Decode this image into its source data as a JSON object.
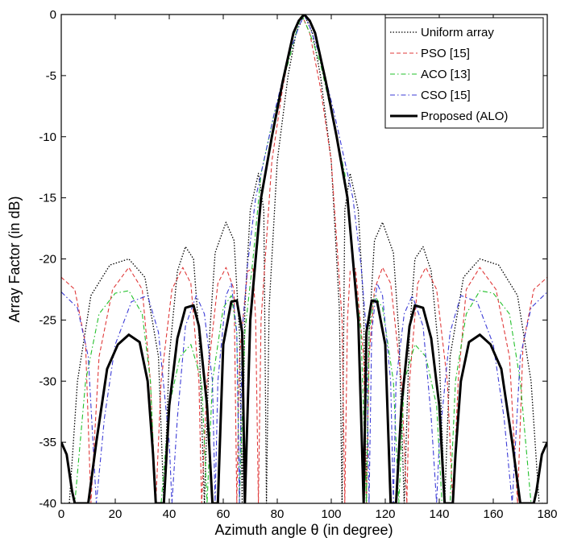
{
  "chart_data": {
    "type": "line",
    "title": "",
    "xlabel": "Azimuth angle θ (in degree)",
    "ylabel": "Array Factor (in dB)",
    "xlim": [
      0,
      180
    ],
    "ylim": [
      -40,
      0
    ],
    "xticks": [
      0,
      20,
      40,
      60,
      80,
      100,
      120,
      140,
      160,
      180
    ],
    "yticks": [
      0,
      -5,
      -10,
      -15,
      -20,
      -25,
      -30,
      -35,
      -40
    ],
    "grid": false,
    "legend_position": "top-right",
    "series": [
      {
        "name": "Uniform array",
        "color": "#000000",
        "style": "dotted",
        "points": [
          [
            0,
            -40
          ],
          [
            3,
            -40
          ],
          [
            6,
            -30
          ],
          [
            11,
            -23
          ],
          [
            18,
            -20.5
          ],
          [
            25,
            -20
          ],
          [
            31,
            -21.5
          ],
          [
            36,
            -28
          ],
          [
            38,
            -40
          ],
          [
            40,
            -28
          ],
          [
            43,
            -21
          ],
          [
            46,
            -19
          ],
          [
            49,
            -20
          ],
          [
            51,
            -26
          ],
          [
            53,
            -40
          ],
          [
            55,
            -26
          ],
          [
            57,
            -19.5
          ],
          [
            61,
            -17
          ],
          [
            64,
            -18.5
          ],
          [
            66,
            -26
          ],
          [
            67,
            -40
          ],
          [
            68,
            -24
          ],
          [
            70,
            -16
          ],
          [
            73,
            -13
          ],
          [
            75,
            -16
          ],
          [
            76,
            -40
          ],
          [
            77,
            -24
          ],
          [
            80,
            -12
          ],
          [
            84,
            -5
          ],
          [
            87,
            -1.5
          ],
          [
            90,
            0
          ],
          [
            93,
            -1.5
          ],
          [
            96,
            -5
          ],
          [
            100,
            -12
          ],
          [
            103,
            -24
          ],
          [
            104,
            -40
          ],
          [
            105,
            -16
          ],
          [
            107,
            -13
          ],
          [
            110,
            -16
          ],
          [
            112,
            -24
          ],
          [
            113,
            -40
          ],
          [
            114,
            -26
          ],
          [
            116,
            -18.5
          ],
          [
            119,
            -17
          ],
          [
            123,
            -19.5
          ],
          [
            125,
            -26
          ],
          [
            127,
            -40
          ],
          [
            129,
            -26
          ],
          [
            131,
            -20
          ],
          [
            134,
            -19
          ],
          [
            137,
            -21
          ],
          [
            140,
            -28
          ],
          [
            142,
            -40
          ],
          [
            144,
            -28
          ],
          [
            149,
            -21.5
          ],
          [
            155,
            -20
          ],
          [
            162,
            -20.5
          ],
          [
            169,
            -23
          ],
          [
            174,
            -30
          ],
          [
            177,
            -40
          ],
          [
            180,
            -40
          ]
        ]
      },
      {
        "name": "PSO [15]",
        "color": "#e03a3a",
        "style": "dashed",
        "points": [
          [
            0,
            -21.5
          ],
          [
            5,
            -22.5
          ],
          [
            9,
            -27
          ],
          [
            11,
            -40
          ],
          [
            14,
            -28
          ],
          [
            19,
            -22.5
          ],
          [
            25,
            -20.7
          ],
          [
            30,
            -22.5
          ],
          [
            33,
            -30
          ],
          [
            35,
            -40
          ],
          [
            37,
            -30
          ],
          [
            41,
            -22.5
          ],
          [
            45,
            -20.7
          ],
          [
            48,
            -22
          ],
          [
            51,
            -30
          ],
          [
            52,
            -40
          ],
          [
            54,
            -30
          ],
          [
            58,
            -22
          ],
          [
            61,
            -20.7
          ],
          [
            64,
            -22.5
          ],
          [
            65,
            -40
          ],
          [
            66,
            -28
          ],
          [
            69,
            -21
          ],
          [
            71,
            -20.8
          ],
          [
            72,
            -25
          ],
          [
            73,
            -40
          ],
          [
            74,
            -25
          ],
          [
            78,
            -12
          ],
          [
            82,
            -6
          ],
          [
            86,
            -1.5
          ],
          [
            89,
            0
          ],
          [
            92,
            -1.5
          ],
          [
            96,
            -6
          ],
          [
            100,
            -12
          ],
          [
            104,
            -25
          ],
          [
            105,
            -40
          ],
          [
            106,
            -25
          ],
          [
            107,
            -21
          ],
          [
            109,
            -20.8
          ],
          [
            112,
            -28
          ],
          [
            113,
            -40
          ],
          [
            114,
            -28
          ],
          [
            116,
            -22.5
          ],
          [
            119,
            -20.7
          ],
          [
            122,
            -22
          ],
          [
            126,
            -30
          ],
          [
            128,
            -40
          ],
          [
            129,
            -30
          ],
          [
            132,
            -22
          ],
          [
            135,
            -20.7
          ],
          [
            139,
            -22.5
          ],
          [
            143,
            -30
          ],
          [
            145,
            -40
          ],
          [
            147,
            -30
          ],
          [
            150,
            -22.5
          ],
          [
            155,
            -20.7
          ],
          [
            161,
            -22.5
          ],
          [
            166,
            -28
          ],
          [
            169,
            -40
          ],
          [
            171,
            -27
          ],
          [
            175,
            -22.5
          ],
          [
            180,
            -21.5
          ]
        ]
      },
      {
        "name": "ACO [13]",
        "color": "#22c02a",
        "style": "dashdot",
        "points": [
          [
            0,
            -40
          ],
          [
            5,
            -40
          ],
          [
            9,
            -30
          ],
          [
            14,
            -24.5
          ],
          [
            20,
            -22.8
          ],
          [
            25,
            -22.6
          ],
          [
            30,
            -24.5
          ],
          [
            33,
            -30
          ],
          [
            35,
            -40
          ],
          [
            37,
            -40
          ],
          [
            40,
            -32
          ],
          [
            44,
            -28
          ],
          [
            48,
            -27
          ],
          [
            52,
            -30
          ],
          [
            54,
            -40
          ],
          [
            56,
            -30
          ],
          [
            60,
            -24
          ],
          [
            63,
            -23
          ],
          [
            65,
            -26
          ],
          [
            66,
            -40
          ],
          [
            68,
            -26
          ],
          [
            71,
            -20
          ],
          [
            74,
            -13
          ],
          [
            79,
            -8
          ],
          [
            84,
            -4
          ],
          [
            87,
            -1.5
          ],
          [
            89,
            0
          ],
          [
            92,
            -1.5
          ],
          [
            96,
            -4
          ],
          [
            100,
            -8
          ],
          [
            105,
            -13
          ],
          [
            108,
            -20
          ],
          [
            111,
            -26
          ],
          [
            113,
            -40
          ],
          [
            114,
            -26
          ],
          [
            116,
            -23
          ],
          [
            119,
            -24
          ],
          [
            123,
            -30
          ],
          [
            125,
            -40
          ],
          [
            127,
            -30
          ],
          [
            131,
            -27
          ],
          [
            135,
            -28
          ],
          [
            139,
            -32
          ],
          [
            141,
            -40
          ],
          [
            144,
            -40
          ],
          [
            146,
            -30
          ],
          [
            150,
            -24.5
          ],
          [
            155,
            -22.6
          ],
          [
            160,
            -22.8
          ],
          [
            166,
            -24.5
          ],
          [
            170,
            -30
          ],
          [
            174,
            -40
          ],
          [
            180,
            -40
          ]
        ]
      },
      {
        "name": "CSO [15]",
        "color": "#3b3bd6",
        "style": "dashdot",
        "points": [
          [
            0,
            -22.7
          ],
          [
            6,
            -24
          ],
          [
            10,
            -28
          ],
          [
            13,
            -40
          ],
          [
            16,
            -33
          ],
          [
            20,
            -27
          ],
          [
            26,
            -23.5
          ],
          [
            32,
            -23
          ],
          [
            36,
            -26
          ],
          [
            40,
            -35
          ],
          [
            41,
            -40
          ],
          [
            43,
            -33
          ],
          [
            46,
            -25.5
          ],
          [
            50,
            -23
          ],
          [
            53,
            -24.5
          ],
          [
            56,
            -30
          ],
          [
            57,
            -40
          ],
          [
            58,
            -30
          ],
          [
            61,
            -23
          ],
          [
            63,
            -22
          ],
          [
            65,
            -26
          ],
          [
            66,
            -40
          ],
          [
            67,
            -26
          ],
          [
            69,
            -20.5
          ],
          [
            72,
            -15
          ],
          [
            75,
            -12
          ],
          [
            79,
            -8
          ],
          [
            84,
            -3.5
          ],
          [
            88,
            -1
          ],
          [
            90,
            0
          ],
          [
            92,
            -1
          ],
          [
            96,
            -3.5
          ],
          [
            101,
            -8
          ],
          [
            105,
            -12
          ],
          [
            108,
            -15
          ],
          [
            111,
            -20.5
          ],
          [
            113,
            -26
          ],
          [
            114,
            -40
          ],
          [
            115,
            -26
          ],
          [
            117,
            -22
          ],
          [
            119,
            -23
          ],
          [
            122,
            -30
          ],
          [
            123,
            -40
          ],
          [
            124,
            -30
          ],
          [
            127,
            -24.5
          ],
          [
            130,
            -23
          ],
          [
            134,
            -25.5
          ],
          [
            137,
            -33
          ],
          [
            139,
            -40
          ],
          [
            140,
            -35
          ],
          [
            144,
            -26
          ],
          [
            148,
            -23
          ],
          [
            154,
            -23.5
          ],
          [
            160,
            -27
          ],
          [
            164,
            -33
          ],
          [
            167,
            -40
          ],
          [
            170,
            -28
          ],
          [
            174,
            -24
          ],
          [
            180,
            -22.7
          ]
        ]
      },
      {
        "name": "Proposed (ALO)",
        "color": "#000000",
        "style": "solid-bold",
        "points": [
          [
            0,
            -35
          ],
          [
            2,
            -36
          ],
          [
            4,
            -39
          ],
          [
            5,
            -40
          ],
          [
            10,
            -40
          ],
          [
            13,
            -35
          ],
          [
            17,
            -29
          ],
          [
            21,
            -27
          ],
          [
            25,
            -26.2
          ],
          [
            29,
            -26.8
          ],
          [
            32,
            -30
          ],
          [
            34,
            -36
          ],
          [
            35,
            -40
          ],
          [
            38,
            -40
          ],
          [
            40,
            -32
          ],
          [
            43,
            -26.5
          ],
          [
            46,
            -24
          ],
          [
            49,
            -23.8
          ],
          [
            51,
            -25.5
          ],
          [
            54,
            -32
          ],
          [
            56,
            -40
          ],
          [
            58,
            -40
          ],
          [
            60,
            -27
          ],
          [
            63,
            -23.5
          ],
          [
            65,
            -23.4
          ],
          [
            67,
            -26
          ],
          [
            68,
            -40
          ],
          [
            70,
            -25
          ],
          [
            74,
            -15
          ],
          [
            78,
            -10
          ],
          [
            82,
            -5.5
          ],
          [
            86,
            -1.5
          ],
          [
            88,
            -0.5
          ],
          [
            90,
            0
          ],
          [
            92,
            -0.5
          ],
          [
            94,
            -1.5
          ],
          [
            98,
            -5.5
          ],
          [
            102,
            -10
          ],
          [
            106,
            -15
          ],
          [
            110,
            -25
          ],
          [
            112,
            -40
          ],
          [
            113,
            -26
          ],
          [
            115,
            -23.4
          ],
          [
            117,
            -23.5
          ],
          [
            120,
            -27
          ],
          [
            122,
            -40
          ],
          [
            124,
            -40
          ],
          [
            126,
            -32
          ],
          [
            129,
            -25.5
          ],
          [
            131,
            -23.8
          ],
          [
            134,
            -24
          ],
          [
            137,
            -26.5
          ],
          [
            140,
            -32
          ],
          [
            142,
            -40
          ],
          [
            145,
            -40
          ],
          [
            146,
            -36
          ],
          [
            148,
            -30
          ],
          [
            151,
            -26.8
          ],
          [
            155,
            -26.2
          ],
          [
            159,
            -27
          ],
          [
            163,
            -29
          ],
          [
            167,
            -35
          ],
          [
            170,
            -40
          ],
          [
            175,
            -40
          ],
          [
            176,
            -39
          ],
          [
            178,
            -36
          ],
          [
            180,
            -35
          ]
        ]
      }
    ]
  }
}
